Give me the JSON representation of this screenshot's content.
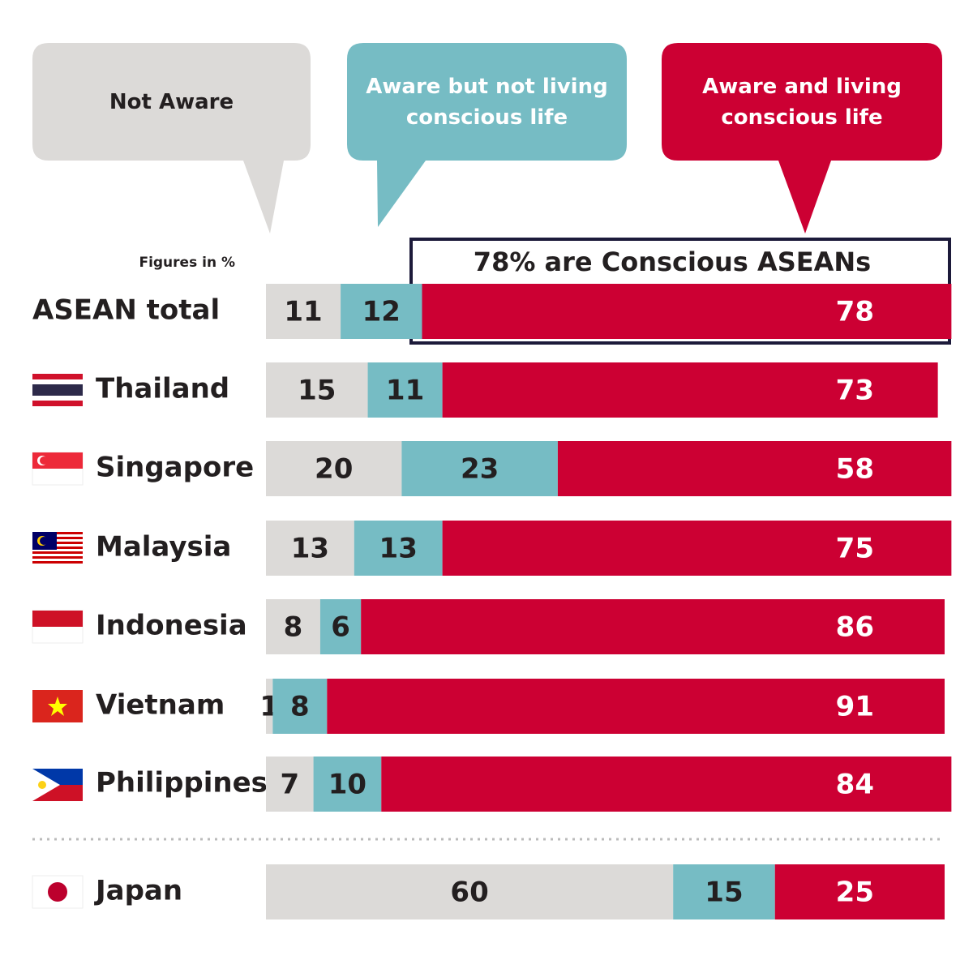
{
  "chart_data": {
    "type": "stacked-bar-horizontal",
    "note": "Figures in %",
    "annotation": "78% are Conscious ASEANs",
    "categories": [
      "ASEAN total",
      "Thailand",
      "Singapore",
      "Malaysia",
      "Indonesia",
      "Vietnam",
      "Philippines",
      "Japan"
    ],
    "xlim": [
      0,
      100
    ],
    "series": [
      {
        "name": "Not Aware",
        "color": "#dcdad8",
        "values": [
          11,
          15,
          20,
          13,
          8,
          1,
          7,
          60
        ]
      },
      {
        "name": "Aware but not living conscious life",
        "color": "#76bcc4",
        "values": [
          12,
          11,
          23,
          13,
          6,
          8,
          10,
          15
        ]
      },
      {
        "name": "Aware and living conscious life",
        "color": "#cc0033",
        "values": [
          78,
          73,
          58,
          75,
          86,
          91,
          84,
          25
        ]
      }
    ]
  }
}
